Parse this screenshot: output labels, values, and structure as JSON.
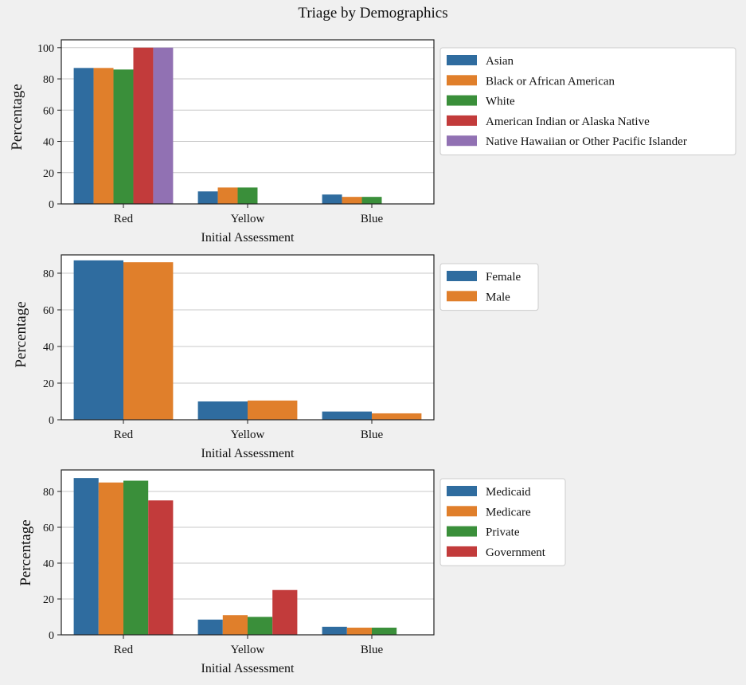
{
  "figure": {
    "title": "Triage by Demographics",
    "background": "#f0f0f0"
  },
  "chart_data": [
    {
      "type": "bar",
      "title": "",
      "xlabel": "Initial Assessment",
      "ylabel": "Percentage",
      "categories": [
        "Red",
        "Yellow",
        "Blue"
      ],
      "ylim": [
        0,
        105
      ],
      "yticks": [
        0,
        20,
        40,
        60,
        80,
        100
      ],
      "grid": "y",
      "legend_position": "outside-right",
      "series": [
        {
          "name": "Asian",
          "color": "#2f6c9f",
          "values": [
            87,
            8,
            6
          ]
        },
        {
          "name": "Black or African American",
          "color": "#e07f2b",
          "values": [
            87,
            10.5,
            4.5
          ]
        },
        {
          "name": "White",
          "color": "#3a8f3a",
          "values": [
            86,
            10.5,
            4.5
          ]
        },
        {
          "name": "American Indian or Alaska Native",
          "color": "#c23b3b",
          "values": [
            100,
            0,
            0
          ]
        },
        {
          "name": "Native Hawaiian or Other Pacific Islander",
          "color": "#9171b3",
          "values": [
            100,
            0,
            0
          ]
        }
      ]
    },
    {
      "type": "bar",
      "title": "",
      "xlabel": "Initial Assessment",
      "ylabel": "Percentage",
      "categories": [
        "Red",
        "Yellow",
        "Blue"
      ],
      "ylim": [
        0,
        90
      ],
      "yticks": [
        0,
        20,
        40,
        60,
        80
      ],
      "grid": "y",
      "legend_position": "outside-right",
      "series": [
        {
          "name": "Female",
          "color": "#2f6c9f",
          "values": [
            87,
            10,
            4.5
          ]
        },
        {
          "name": "Male",
          "color": "#e07f2b",
          "values": [
            86,
            10.5,
            3.5
          ]
        }
      ]
    },
    {
      "type": "bar",
      "title": "",
      "xlabel": "Initial Assessment",
      "ylabel": "Percentage",
      "categories": [
        "Red",
        "Yellow",
        "Blue"
      ],
      "ylim": [
        0,
        92
      ],
      "yticks": [
        0,
        20,
        40,
        60,
        80
      ],
      "grid": "y",
      "legend_position": "outside-right",
      "series": [
        {
          "name": "Medicaid",
          "color": "#2f6c9f",
          "values": [
            87.5,
            8.5,
            4.5
          ]
        },
        {
          "name": "Medicare",
          "color": "#e07f2b",
          "values": [
            85,
            11,
            4
          ]
        },
        {
          "name": "Private",
          "color": "#3a8f3a",
          "values": [
            86,
            10,
            4
          ]
        },
        {
          "name": "Government",
          "color": "#c23b3b",
          "values": [
            75,
            25,
            0
          ]
        }
      ]
    }
  ]
}
